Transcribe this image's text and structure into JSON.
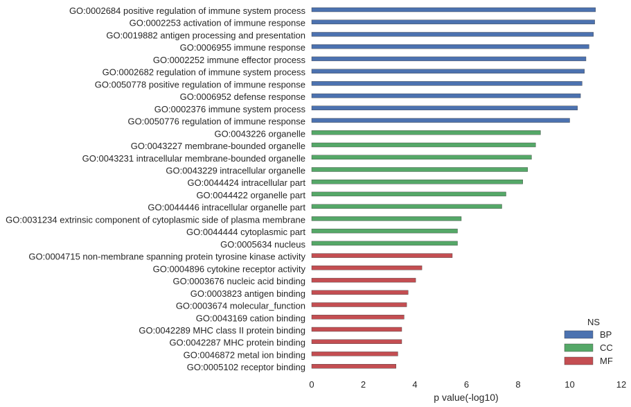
{
  "chart_data": {
    "type": "bar",
    "orientation": "horizontal",
    "xlabel": "p value(-log10)",
    "ylabel": "",
    "xlim": [
      0,
      12
    ],
    "x_ticks": [
      "0",
      "2",
      "4",
      "6",
      "8",
      "10",
      "12"
    ],
    "grid": false,
    "legend": {
      "title": "NS",
      "placement": "bottom-right",
      "entries": [
        {
          "name": "BP",
          "color": "#4c72b0"
        },
        {
          "name": "CC",
          "color": "#55a868"
        },
        {
          "name": "MF",
          "color": "#c44e52"
        }
      ]
    },
    "bars": [
      {
        "label": "GO:0002684 positive regulation of immune system process",
        "value": 11.0,
        "group": "BP"
      },
      {
        "label": "GO:0002253 activation of immune response",
        "value": 10.97,
        "group": "BP"
      },
      {
        "label": "GO:0019882 antigen processing and presentation",
        "value": 10.92,
        "group": "BP"
      },
      {
        "label": "GO:0006955 immune response",
        "value": 10.75,
        "group": "BP"
      },
      {
        "label": "GO:0002252 immune effector process",
        "value": 10.63,
        "group": "BP"
      },
      {
        "label": "GO:0002682 regulation of immune system process",
        "value": 10.57,
        "group": "BP"
      },
      {
        "label": "GO:0050778 positive regulation of immune response",
        "value": 10.48,
        "group": "BP"
      },
      {
        "label": "GO:0006952 defense response",
        "value": 10.42,
        "group": "BP"
      },
      {
        "label": "GO:0002376 immune system process",
        "value": 10.3,
        "group": "BP"
      },
      {
        "label": "GO:0050776 regulation of immune response",
        "value": 10.0,
        "group": "BP"
      },
      {
        "label": "GO:0043226 organelle",
        "value": 8.87,
        "group": "CC"
      },
      {
        "label": "GO:0043227 membrane-bounded organelle",
        "value": 8.68,
        "group": "CC"
      },
      {
        "label": "GO:0043231 intracellular membrane-bounded organelle",
        "value": 8.52,
        "group": "CC"
      },
      {
        "label": "GO:0043229 intracellular organelle",
        "value": 8.37,
        "group": "CC"
      },
      {
        "label": "GO:0044424 intracellular part",
        "value": 8.18,
        "group": "CC"
      },
      {
        "label": "GO:0044422 organelle part",
        "value": 7.53,
        "group": "CC"
      },
      {
        "label": "GO:0044446 intracellular organelle part",
        "value": 7.37,
        "group": "CC"
      },
      {
        "label": "GO:0031234 extrinsic component of cytoplasmic side of plasma membrane",
        "value": 5.8,
        "group": "CC"
      },
      {
        "label": "GO:0044444 cytoplasmic part",
        "value": 5.65,
        "group": "CC"
      },
      {
        "label": "GO:0005634 nucleus",
        "value": 5.65,
        "group": "CC"
      },
      {
        "label": "GO:0004715 non-membrane spanning protein tyrosine kinase activity",
        "value": 5.45,
        "group": "MF"
      },
      {
        "label": "GO:0004896 cytokine receptor activity",
        "value": 4.27,
        "group": "MF"
      },
      {
        "label": "GO:0003676 nucleic acid binding",
        "value": 4.03,
        "group": "MF"
      },
      {
        "label": "GO:0003823 antigen binding",
        "value": 3.74,
        "group": "MF"
      },
      {
        "label": "GO:0003674 molecular_function",
        "value": 3.68,
        "group": "MF"
      },
      {
        "label": "GO:0043169 cation binding",
        "value": 3.58,
        "group": "MF"
      },
      {
        "label": "GO:0042289 MHC class II protein binding",
        "value": 3.49,
        "group": "MF"
      },
      {
        "label": "GO:0042287 MHC protein binding",
        "value": 3.49,
        "group": "MF"
      },
      {
        "label": "GO:0046872 metal ion binding",
        "value": 3.34,
        "group": "MF"
      },
      {
        "label": "GO:0005102 receptor binding",
        "value": 3.27,
        "group": "MF"
      }
    ]
  }
}
